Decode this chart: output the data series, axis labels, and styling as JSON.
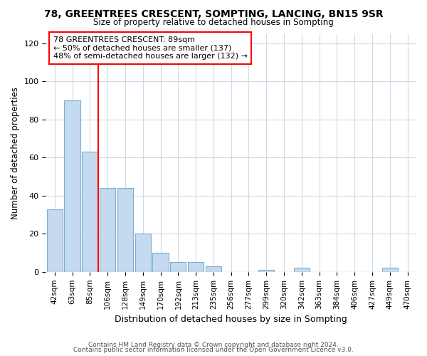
{
  "title1": "78, GREENTREES CRESCENT, SOMPTING, LANCING, BN15 9SR",
  "title2": "Size of property relative to detached houses in Sompting",
  "xlabel": "Distribution of detached houses by size in Sompting",
  "ylabel": "Number of detached properties",
  "categories": [
    "42sqm",
    "63sqm",
    "85sqm",
    "106sqm",
    "128sqm",
    "149sqm",
    "170sqm",
    "192sqm",
    "213sqm",
    "235sqm",
    "256sqm",
    "277sqm",
    "299sqm",
    "320sqm",
    "342sqm",
    "363sqm",
    "384sqm",
    "406sqm",
    "427sqm",
    "449sqm",
    "470sqm"
  ],
  "values": [
    33,
    90,
    63,
    44,
    44,
    20,
    10,
    5,
    5,
    3,
    0,
    0,
    1,
    0,
    2,
    0,
    0,
    0,
    0,
    2,
    0
  ],
  "bar_color": "#c5d9ef",
  "bar_edge_color": "#7bafd4",
  "vline_color": "red",
  "vline_x_index": 2,
  "annotation_text": "78 GREENTREES CRESCENT: 89sqm\n← 50% of detached houses are smaller (137)\n48% of semi-detached houses are larger (132) →",
  "annotation_box_color": "white",
  "annotation_box_edge_color": "red",
  "ylim": [
    0,
    125
  ],
  "yticks": [
    0,
    20,
    40,
    60,
    80,
    100,
    120
  ],
  "footer1": "Contains HM Land Registry data © Crown copyright and database right 2024.",
  "footer2": "Contains public sector information licensed under the Open Government Licence v3.0.",
  "bg_color": "#ffffff",
  "plot_bg_color": "#ffffff",
  "grid_color": "#d0d8e8"
}
